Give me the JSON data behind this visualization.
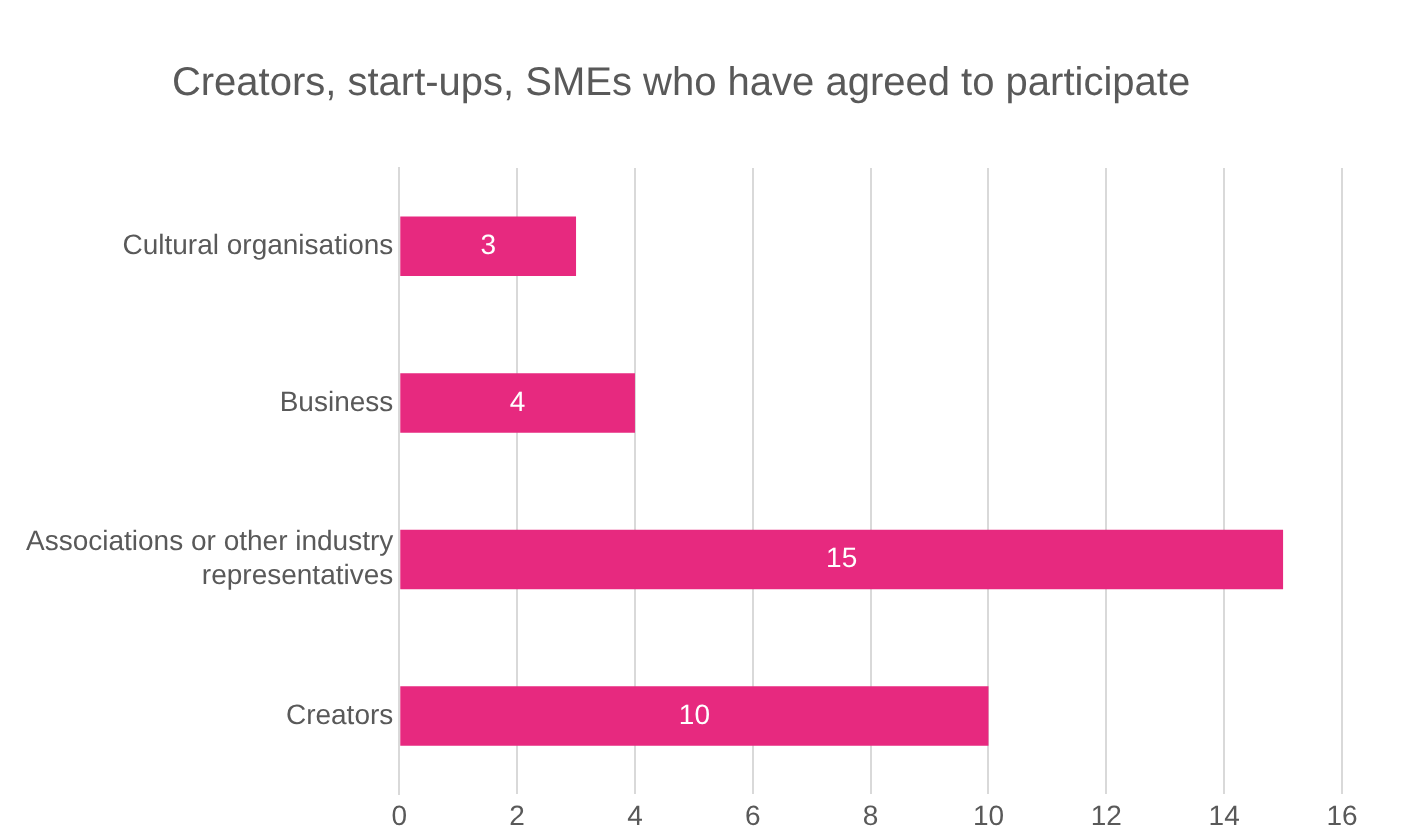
{
  "chart_data": {
    "type": "bar",
    "orientation": "horizontal",
    "title": "Creators, start-ups, SMEs who have agreed to participate",
    "categories": [
      "Cultural organisations",
      "Business",
      "Associations or other industry representatives",
      "Creators"
    ],
    "values": [
      3,
      4,
      15,
      10
    ],
    "color": "#e7297f",
    "xlim": [
      0,
      16
    ],
    "xticks": [
      0,
      2,
      4,
      6,
      8,
      10,
      12,
      14,
      16
    ],
    "grid": "x",
    "data_labels": true,
    "legend": false
  }
}
